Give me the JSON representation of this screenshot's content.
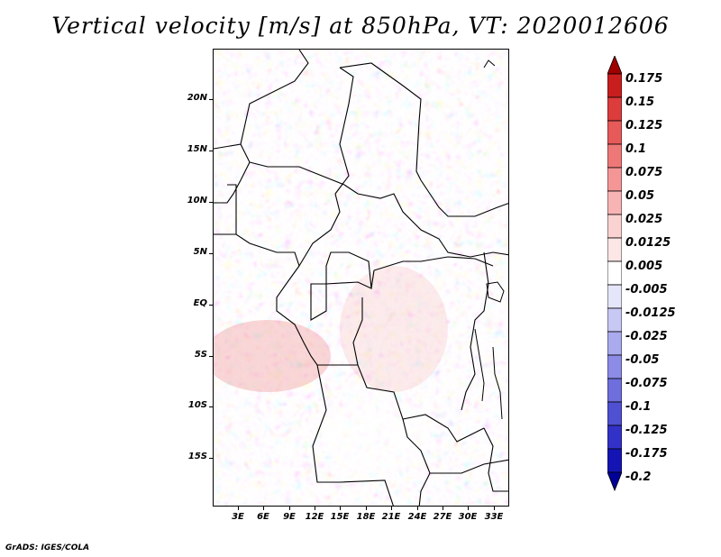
{
  "title": "Vertical velocity [m/s] at 850hPa, VT: 2020012606",
  "credit": "GrADS: IGES/COLA",
  "map": {
    "lat_labels": [
      "20N",
      "15N",
      "10N",
      "5N",
      "EQ",
      "5S",
      "10S",
      "15S"
    ],
    "lon_labels": [
      "3E",
      "6E",
      "9E",
      "12E",
      "15E",
      "18E",
      "21E",
      "24E",
      "27E",
      "30E",
      "33E"
    ]
  },
  "colorbar": {
    "labels": [
      "0.175",
      "0.15",
      "0.125",
      "0.1",
      "0.075",
      "0.05",
      "0.025",
      "0.0125",
      "0.005",
      "-0.005",
      "-0.0125",
      "-0.025",
      "-0.05",
      "-0.075",
      "-0.1",
      "-0.125",
      "-0.175",
      "-0.2"
    ],
    "colors": [
      "#a00000",
      "#c81e1e",
      "#dc3c3c",
      "#e65a5a",
      "#ee7878",
      "#f59696",
      "#f8b4b4",
      "#fbd2d2",
      "#fde6e6",
      "#ffffff",
      "#e6e6fb",
      "#c8c8f5",
      "#aaaaee",
      "#8c8ce6",
      "#6e6edc",
      "#5050d2",
      "#3232c8",
      "#1414b4",
      "#000096"
    ]
  }
}
